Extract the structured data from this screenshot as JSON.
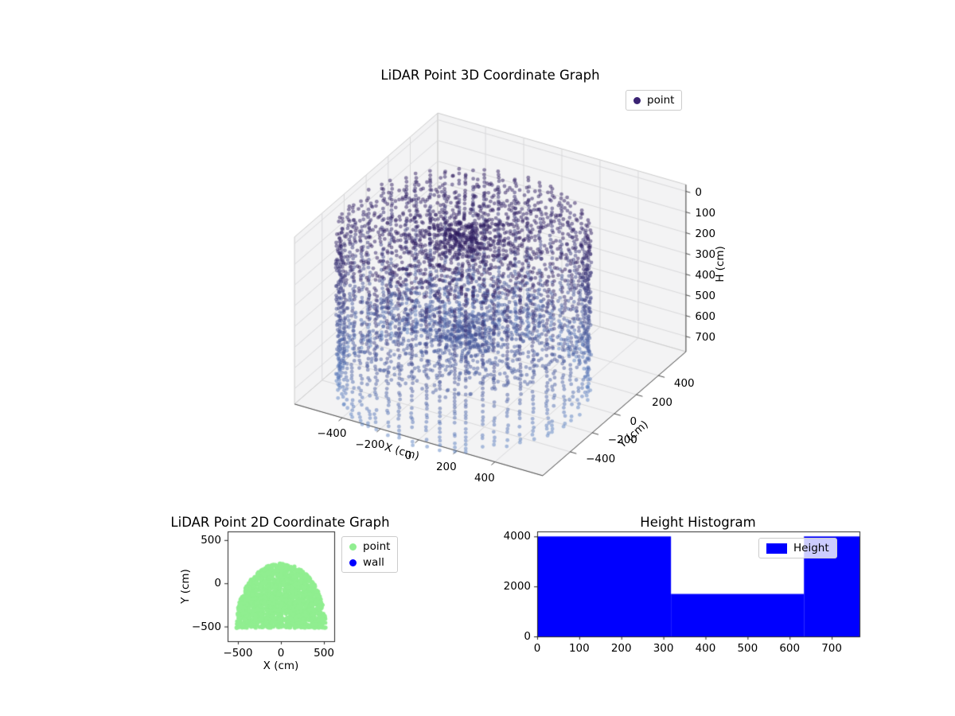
{
  "figure": {
    "background": "#ffffff"
  },
  "chart_data": [
    {
      "id": "lidar3d",
      "type": "scatter3d",
      "title": "LiDAR Point 3D Coordinate Graph",
      "xlabel": "X (cm)",
      "ylabel": "Y (cm)",
      "zlabel": "H (cm)",
      "xlim": [
        -650,
        650
      ],
      "ylim": [
        -650,
        650
      ],
      "hlim": [
        0,
        766
      ],
      "h_axis_inverted": true,
      "xticks": [
        -400,
        -200,
        0,
        200,
        400
      ],
      "yticks": [
        -400,
        -200,
        0,
        200,
        400
      ],
      "hticks": [
        0,
        100,
        200,
        300,
        400,
        500,
        600,
        700
      ],
      "grid": true,
      "legend": {
        "position": "upper right",
        "entries": [
          {
            "label": "point",
            "color": "#3a2373"
          }
        ]
      },
      "point_cloud": {
        "shape": "cylindrical-room-scan",
        "center": [
          -45,
          -165
        ],
        "wall_radius": 570,
        "height_range": [
          0,
          766
        ],
        "wall_stripes": 56,
        "wall_step_cm": [
          14,
          22
        ],
        "gap_prob": 0.22,
        "ceiling": {
          "h": [
            0,
            70
          ],
          "r_step": [
            18,
            26
          ]
        },
        "floor": {
          "h": [
            465,
            545
          ],
          "r_step": [
            20,
            28
          ]
        },
        "clutter": {
          "count": 380,
          "h": [
            230,
            470
          ],
          "radius_frac": 0.72
        },
        "color_low_h": "#2d1a5e",
        "color_high_h": "#5c83c4",
        "alpha": 0.5,
        "marker_px": 2.4
      }
    },
    {
      "id": "lidar2d",
      "type": "scatter",
      "title": "LiDAR Point 2D Coordinate Graph",
      "xlabel": "X (cm)",
      "ylabel": "Y (cm)",
      "xlim": [
        -620,
        620
      ],
      "ylim": [
        -670,
        600
      ],
      "xticks": [
        -500,
        0,
        500
      ],
      "yticks": [
        -500,
        0,
        500
      ],
      "legend": {
        "position": "right of axes",
        "entries": [
          {
            "label": "point",
            "color": "#90ee90"
          },
          {
            "label": "wall",
            "color": "#0000ff"
          }
        ]
      },
      "region": {
        "shape": "dome",
        "x_half": 520,
        "y_base": -515,
        "y_top": 230,
        "points": 1700,
        "marker_px": 2.6,
        "color": "#90ee90"
      }
    },
    {
      "id": "histogram",
      "type": "bar",
      "title": "Height Histogram",
      "bin_edges": [
        0,
        318,
        634,
        766
      ],
      "counts": [
        4000,
        1700,
        4000
      ],
      "bar_color": "#0000ff",
      "xlim": [
        0,
        766
      ],
      "ylim": [
        0,
        4200
      ],
      "xticks": [
        0,
        100,
        200,
        300,
        400,
        500,
        600,
        700
      ],
      "yticks": [
        0,
        2000,
        4000
      ],
      "legend": {
        "position": "upper right",
        "entries": [
          {
            "label": "Height",
            "color": "#0000ff"
          }
        ]
      }
    }
  ]
}
